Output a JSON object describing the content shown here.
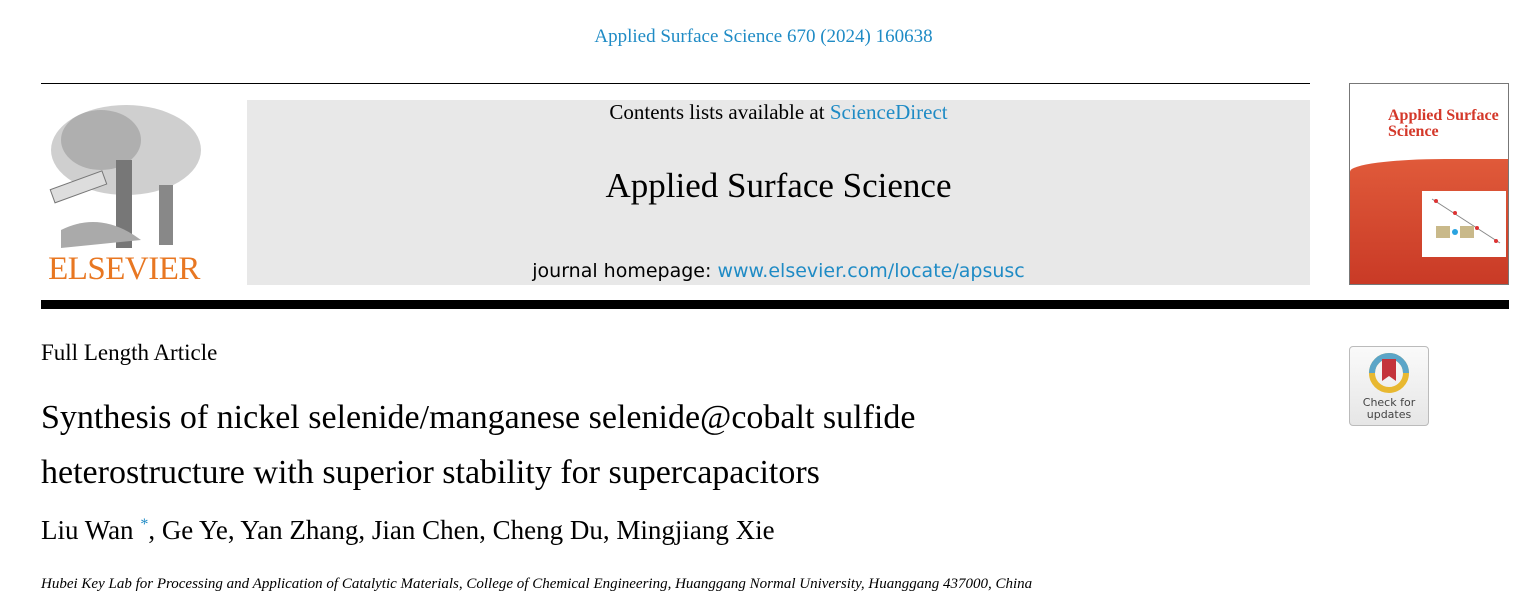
{
  "header": {
    "citation": "Applied Surface Science 670 (2024) 160638",
    "contents_prefix": "Contents lists available at ",
    "contents_link": "ScienceDirect",
    "journal_name": "Applied Surface Science",
    "homepage_prefix": "journal homepage: ",
    "homepage_link": "www.elsevier.com/locate/apsusc",
    "publisher_logo_text": "ELSEVIER",
    "cover_title": "Applied Surface Science"
  },
  "article": {
    "type": "Full Length Article",
    "title_line1": "Synthesis of nickel selenide/manganese selenide@cobalt sulfide",
    "title_line2": "heterostructure with superior stability for supercapacitors",
    "authors": [
      "Liu Wan",
      "Ge Ye",
      "Yan Zhang",
      "Jian Chen",
      "Cheng Du",
      "Mingjiang Xie"
    ],
    "corresponding_mark": "*",
    "affiliation": "Hubei Key Lab for Processing and Application of Catalytic Materials, College of Chemical Engineering, Huanggang Normal University, Huanggang 437000, China"
  },
  "badge": {
    "line1": "Check for",
    "line2": "updates"
  },
  "colors": {
    "link": "#1f8bc5",
    "elsevier": "#e87722",
    "banner": "#e8e8e8"
  }
}
